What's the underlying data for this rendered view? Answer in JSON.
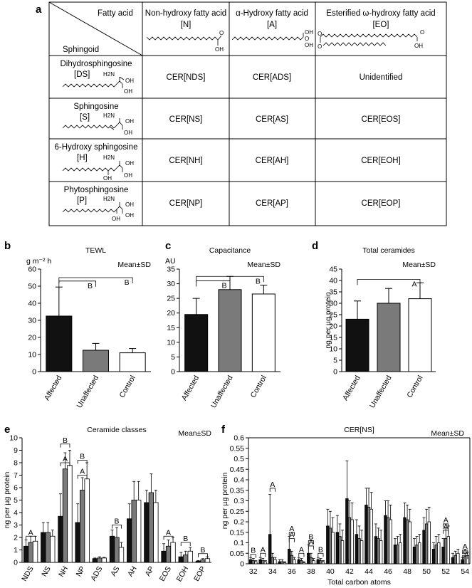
{
  "panel_letters": {
    "a": "a",
    "b": "b",
    "c": "c",
    "d": "d",
    "e": "e",
    "f": "f"
  },
  "table": {
    "header_fatty_acid": "Fatty acid",
    "header_sphingoid": "Sphingoid",
    "columns": [
      {
        "name": "Non-hydroxy fatty acid",
        "code": "[N]"
      },
      {
        "name": "α-Hydroxy fatty acid",
        "code": "[A]"
      },
      {
        "name": "Esterified ω-hydroxy fatty acid",
        "code": "[EO]"
      }
    ],
    "rows": [
      {
        "name": "Dihydrosphingosine",
        "code": "[DS]",
        "cells": [
          "CER[NDS]",
          "CER[ADS]",
          "Unidentified"
        ]
      },
      {
        "name": "Sphingosine",
        "code": "[S]",
        "cells": [
          "CER[NS]",
          "CER[AS]",
          "CER[EOS]"
        ]
      },
      {
        "name": "6-Hydroxy sphingosine",
        "code": "[H]",
        "cells": [
          "CER[NH]",
          "CER[AH]",
          "CER[EOH]"
        ]
      },
      {
        "name": "Phytosphingosine",
        "code": "[P]",
        "cells": [
          "CER[NP]",
          "CER[AP]",
          "CER[EOP]"
        ]
      }
    ],
    "chem_labels": {
      "oh": "OH",
      "h2n": "H2N",
      "o": "O"
    }
  },
  "colors": {
    "affected": "#111111",
    "unaffected": "#7a7a7a",
    "control": "#ffffff"
  },
  "chart_data": [
    {
      "panel": "b",
      "type": "bar",
      "title": "TEWL",
      "ylabel": "g m⁻² h",
      "legend": "Mean±SD",
      "categories": [
        "Affected",
        "Unaffected",
        "Control"
      ],
      "values": [
        32.5,
        12.5,
        11
      ],
      "errors": [
        17,
        4,
        2.5
      ],
      "ylim": [
        0,
        60
      ],
      "yticks": [
        0,
        10,
        20,
        30,
        40,
        50,
        60
      ],
      "sig": [
        {
          "label": "B",
          "from": 0,
          "to": 1,
          "level": 53
        },
        {
          "label": "B",
          "from": 0,
          "to": 2,
          "level": 55
        }
      ]
    },
    {
      "panel": "c",
      "type": "bar",
      "title": "Capacitance",
      "ylabel": "AU",
      "legend": "Mean±SD",
      "categories": [
        "Affected",
        "Unaffected",
        "Control"
      ],
      "values": [
        19.5,
        28,
        26.5
      ],
      "errors": [
        5.5,
        4.5,
        3
      ],
      "ylim": [
        0,
        35
      ],
      "yticks": [
        0,
        5,
        10,
        15,
        20,
        25,
        30,
        35
      ],
      "sig": [
        {
          "label": "B",
          "from": 0,
          "to": 1,
          "level": 31
        },
        {
          "label": "B",
          "from": 0,
          "to": 2,
          "level": 32.5
        }
      ]
    },
    {
      "panel": "d",
      "type": "bar",
      "title": "Total ceramides",
      "ylabel": "ng per µg protein",
      "legend": "Mean±SD",
      "categories": [
        "Affected",
        "Unaffected",
        "Control"
      ],
      "values": [
        23,
        30,
        32
      ],
      "errors": [
        8,
        6.5,
        7
      ],
      "ylim": [
        0,
        45
      ],
      "yticks": [
        0,
        5,
        10,
        15,
        20,
        25,
        30,
        35,
        40,
        45
      ],
      "sig": [
        {
          "label": "A",
          "from": 0,
          "to": 2,
          "level": 40.5
        }
      ]
    },
    {
      "panel": "e",
      "type": "bar",
      "title": "Ceramide classes",
      "ylabel": "ng per µg protein",
      "legend": "Mean±SD",
      "categories": [
        "NDS",
        "NS",
        "NH",
        "NP",
        "ADS",
        "AS",
        "AH",
        "AP",
        "EOS",
        "EOH",
        "EOP"
      ],
      "series": [
        {
          "values": [
            1.3,
            2.4,
            3.7,
            3.2,
            0.3,
            2.1,
            3.5,
            4.8,
            0.9,
            0.45,
            0.1
          ],
          "errors": [
            0.5,
            0.8,
            1.8,
            1.5,
            0.05,
            0.5,
            1.2,
            1.0,
            0.6,
            0.35,
            0.05
          ]
        },
        {
          "values": [
            1.6,
            2.4,
            7.5,
            5.8,
            0.35,
            2.0,
            5.0,
            5.6,
            1.3,
            0.6,
            0.2
          ],
          "errors": [
            0.5,
            0.8,
            1.3,
            1.0,
            0.1,
            0.8,
            1.5,
            1.5,
            0.5,
            0.3,
            0.1
          ]
        },
        {
          "values": [
            1.7,
            2.1,
            7.8,
            6.7,
            0.35,
            1.2,
            5.0,
            4.8,
            1.6,
            0.9,
            0.3
          ],
          "errors": [
            0.4,
            0.5,
            1.2,
            1.3,
            0.05,
            0.4,
            1.5,
            1.0,
            0.4,
            0.3,
            0.15
          ]
        }
      ],
      "ylim": [
        0,
        10
      ],
      "yticks": [
        0,
        1,
        2,
        3,
        4,
        5,
        6,
        7,
        8,
        9,
        10
      ],
      "sig": [
        {
          "label": "A",
          "cat": 0,
          "level": 2.1
        },
        {
          "label": "B",
          "cat": 2,
          "level": 9.5
        },
        {
          "label": "A",
          "cat": 2,
          "level": 8.0
        },
        {
          "label": "B",
          "cat": 3,
          "level": 8.2
        },
        {
          "label": "A",
          "cat": 3,
          "level": 7.0
        },
        {
          "label": "B",
          "cat": 5,
          "level": 3.0
        },
        {
          "label": "A",
          "cat": 8,
          "level": 2.1
        },
        {
          "label": "B",
          "cat": 9,
          "level": 1.6
        },
        {
          "label": "B",
          "cat": 10,
          "level": 0.7
        }
      ]
    },
    {
      "panel": "f",
      "type": "bar",
      "title": "CER[NS]",
      "ylabel": "ng per µg protein",
      "xlabel": "Total carbon atoms",
      "legend": "Mean±SD",
      "categories": [
        "32",
        "",
        "34",
        "",
        "36",
        "",
        "38",
        "",
        "40",
        "",
        "42",
        "",
        "44",
        "",
        "46",
        "",
        "48",
        "",
        "50",
        "",
        "52",
        "",
        "54"
      ],
      "carbons": [
        32,
        33,
        34,
        35,
        36,
        37,
        38,
        39,
        40,
        41,
        42,
        43,
        44,
        45,
        46,
        47,
        48,
        49,
        50,
        51,
        52,
        53,
        54
      ],
      "series": [
        {
          "values": [
            0.02,
            0.02,
            0.14,
            0.01,
            0.07,
            0.02,
            0.05,
            0.02,
            0.18,
            0.15,
            0.31,
            0.14,
            0.28,
            0.13,
            0.23,
            0.09,
            0.22,
            0.08,
            0.16,
            0.07,
            0.08,
            0.03,
            0.02
          ],
          "errors": [
            0.01,
            0.01,
            0.19,
            0.01,
            0.06,
            0.01,
            0.04,
            0.01,
            0.08,
            0.08,
            0.18,
            0.07,
            0.08,
            0.06,
            0.07,
            0.03,
            0.07,
            0.04,
            0.06,
            0.03,
            0.04,
            0.02,
            0.01
          ]
        },
        {
          "values": [
            0.015,
            0.015,
            0.03,
            0.01,
            0.04,
            0.015,
            0.03,
            0.015,
            0.17,
            0.13,
            0.22,
            0.12,
            0.27,
            0.12,
            0.22,
            0.09,
            0.21,
            0.09,
            0.19,
            0.09,
            0.12,
            0.04,
            0.035
          ],
          "errors": [
            0.01,
            0.01,
            0.02,
            0.01,
            0.02,
            0.01,
            0.02,
            0.01,
            0.08,
            0.06,
            0.08,
            0.06,
            0.09,
            0.05,
            0.08,
            0.04,
            0.07,
            0.04,
            0.07,
            0.04,
            0.05,
            0.02,
            0.015
          ]
        },
        {
          "values": [
            0.01,
            0.01,
            0.02,
            0.005,
            0.02,
            0.005,
            0.015,
            0.01,
            0.15,
            0.11,
            0.21,
            0.11,
            0.26,
            0.11,
            0.21,
            0.1,
            0.2,
            0.1,
            0.2,
            0.1,
            0.13,
            0.05,
            0.04
          ],
          "errors": [
            0.005,
            0.005,
            0.01,
            0.005,
            0.01,
            0.005,
            0.01,
            0.005,
            0.07,
            0.05,
            0.08,
            0.05,
            0.08,
            0.05,
            0.07,
            0.04,
            0.06,
            0.04,
            0.07,
            0.04,
            0.05,
            0.02,
            0.015
          ]
        }
      ],
      "ylim": [
        0,
        0.6
      ],
      "yticks": [
        0,
        0.05,
        0.1,
        0.15,
        0.2,
        0.25,
        0.3,
        0.35,
        0.4,
        0.45,
        0.5,
        0.55,
        0.6
      ],
      "ytick_labels": [
        "0",
        "0.05",
        "0.1",
        "0.15",
        "0.2",
        "0.25",
        "0.3",
        "0.35",
        "0.4",
        "0.45",
        "0.5",
        "0.55",
        "0.6"
      ],
      "sig": [
        {
          "label": "B",
          "cat": 0,
          "level": 0.045
        },
        {
          "label": "A",
          "cat": 1,
          "level": 0.05
        },
        {
          "label": "A",
          "cat": 2,
          "level": 0.36
        },
        {
          "label": "A",
          "cat": 4,
          "level": 0.15
        },
        {
          "label": "A",
          "cat": 4,
          "level": 0.12
        },
        {
          "label": "A",
          "cat": 5,
          "level": 0.05
        },
        {
          "label": "B",
          "cat": 6,
          "level": 0.11
        },
        {
          "label": "A",
          "cat": 6,
          "level": 0.085
        },
        {
          "label": "B",
          "cat": 7,
          "level": 0.05
        },
        {
          "label": "A",
          "cat": 20,
          "level": 0.19
        },
        {
          "label": "A",
          "cat": 20,
          "level": 0.16
        },
        {
          "label": "A",
          "cat": 22,
          "level": 0.065
        },
        {
          "label": "A",
          "cat": 22,
          "level": 0.04
        }
      ]
    }
  ]
}
